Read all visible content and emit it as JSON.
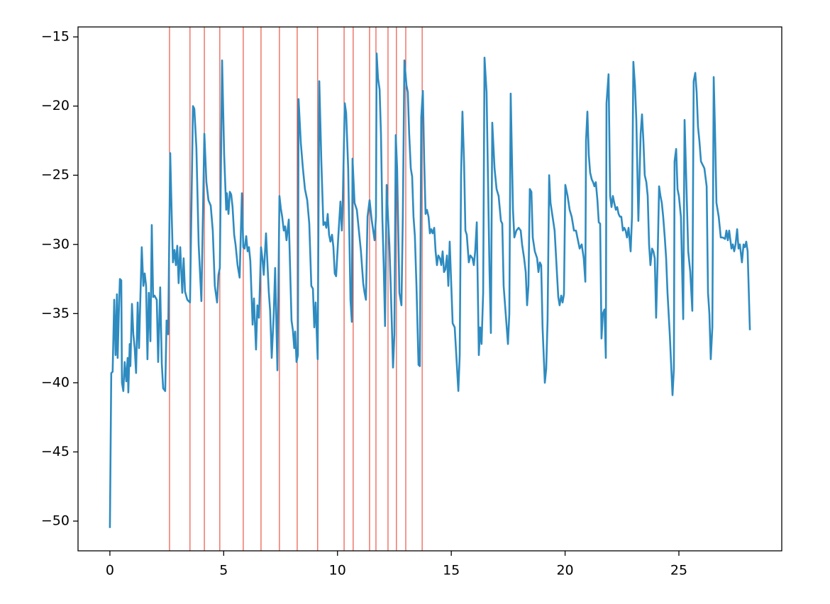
{
  "chart_data": {
    "type": "line",
    "x": [
      0.0,
      0.06,
      0.12,
      0.19,
      0.25,
      0.31,
      0.34,
      0.41,
      0.44,
      0.5,
      0.53,
      0.59,
      0.65,
      0.72,
      0.78,
      0.81,
      0.87,
      0.9,
      0.97,
      1.03,
      1.09,
      1.15,
      1.22,
      1.28,
      1.34,
      1.4,
      1.47,
      1.53,
      1.59,
      1.65,
      1.71,
      1.78,
      1.84,
      1.9,
      1.96,
      2.06,
      2.12,
      2.21,
      2.28,
      2.34,
      2.43,
      2.49,
      2.56,
      2.65,
      2.71,
      2.77,
      2.84,
      2.9,
      2.96,
      3.02,
      3.09,
      3.18,
      3.24,
      3.3,
      3.4,
      3.52,
      3.65,
      3.71,
      3.8,
      3.9,
      4.02,
      4.15,
      4.24,
      4.33,
      4.43,
      4.52,
      4.61,
      4.71,
      4.77,
      4.83,
      4.93,
      5.02,
      5.11,
      5.14,
      5.21,
      5.27,
      5.33,
      5.39,
      5.46,
      5.52,
      5.61,
      5.7,
      5.8,
      5.86,
      5.92,
      5.99,
      6.05,
      6.11,
      6.17,
      6.27,
      6.33,
      6.42,
      6.48,
      6.55,
      6.64,
      6.7,
      6.76,
      6.86,
      6.98,
      7.04,
      7.11,
      7.2,
      7.26,
      7.36,
      7.45,
      7.51,
      7.57,
      7.64,
      7.7,
      7.76,
      7.86,
      7.98,
      8.04,
      8.1,
      8.14,
      8.2,
      8.26,
      8.29,
      8.39,
      8.48,
      8.57,
      8.67,
      8.76,
      8.85,
      8.92,
      8.98,
      9.04,
      9.13,
      9.2,
      9.29,
      9.38,
      9.45,
      9.51,
      9.57,
      9.63,
      9.69,
      9.76,
      9.82,
      9.88,
      9.94,
      10.04,
      10.13,
      10.19,
      10.22,
      10.32,
      10.38,
      10.47,
      10.57,
      10.63,
      10.66,
      10.75,
      10.85,
      10.94,
      11.03,
      11.13,
      11.19,
      11.25,
      11.32,
      11.41,
      11.5,
      11.63,
      11.69,
      11.72,
      11.78,
      11.85,
      11.91,
      11.97,
      12.03,
      12.09,
      12.16,
      12.22,
      12.28,
      12.34,
      12.44,
      12.5,
      12.56,
      12.62,
      12.72,
      12.81,
      12.87,
      12.94,
      13.03,
      13.09,
      13.15,
      13.22,
      13.28,
      13.34,
      13.4,
      13.47,
      13.56,
      13.62,
      13.68,
      13.75,
      13.81,
      13.87,
      13.93,
      14.0,
      14.06,
      14.12,
      14.18,
      14.25,
      14.31,
      14.37,
      14.43,
      14.5,
      14.56,
      14.62,
      14.68,
      14.74,
      14.81,
      14.87,
      14.93,
      15.06,
      15.15,
      15.31,
      15.37,
      15.43,
      15.49,
      15.56,
      15.62,
      15.68,
      15.77,
      15.84,
      15.93,
      15.99,
      16.05,
      16.12,
      16.21,
      16.27,
      16.33,
      16.4,
      16.46,
      16.55,
      16.61,
      16.68,
      16.74,
      16.8,
      16.9,
      16.99,
      17.08,
      17.18,
      17.24,
      17.3,
      17.39,
      17.49,
      17.55,
      17.61,
      17.71,
      17.77,
      17.86,
      17.96,
      18.05,
      18.11,
      18.2,
      18.27,
      18.33,
      18.39,
      18.45,
      18.52,
      18.58,
      18.67,
      18.77,
      18.83,
      18.89,
      18.95,
      19.01,
      19.11,
      19.17,
      19.23,
      19.3,
      19.36,
      19.45,
      19.54,
      19.64,
      19.7,
      19.76,
      19.83,
      19.89,
      19.95,
      20.01,
      20.11,
      20.2,
      20.29,
      20.39,
      20.48,
      20.54,
      20.64,
      20.73,
      20.82,
      20.89,
      20.92,
      20.98,
      21.04,
      21.1,
      21.17,
      21.23,
      21.29,
      21.35,
      21.42,
      21.48,
      21.54,
      21.6,
      21.66,
      21.73,
      21.79,
      21.82,
      21.91,
      21.98,
      22.04,
      22.1,
      22.16,
      22.23,
      22.29,
      22.35,
      22.41,
      22.47,
      22.54,
      22.6,
      22.66,
      22.72,
      22.79,
      22.88,
      22.94,
      23.0,
      23.07,
      23.13,
      23.22,
      23.32,
      23.38,
      23.44,
      23.5,
      23.57,
      23.63,
      23.69,
      23.75,
      23.82,
      23.88,
      23.94,
      24.0,
      24.06,
      24.13,
      24.19,
      24.25,
      24.31,
      24.38,
      24.44,
      24.5,
      24.6,
      24.72,
      24.78,
      24.81,
      24.88,
      24.94,
      25.0,
      25.09,
      25.19,
      25.25,
      25.31,
      25.41,
      25.5,
      25.59,
      25.65,
      25.72,
      25.78,
      25.84,
      25.9,
      25.97,
      26.03,
      26.12,
      26.22,
      26.28,
      26.34,
      26.4,
      26.47,
      26.53,
      26.59,
      26.65,
      26.75,
      26.84,
      26.93,
      27.03,
      27.09,
      27.15,
      27.21,
      27.31,
      27.37,
      27.43,
      27.49,
      27.56,
      27.62,
      27.68,
      27.77,
      27.84,
      27.9,
      27.96,
      28.02,
      28.12
    ],
    "series": [
      {
        "color": "#2e8bc0",
        "values": [
          -50.5,
          -39.3,
          -39.2,
          -34.0,
          -38.0,
          -33.6,
          -38.2,
          -34.0,
          -32.5,
          -32.6,
          -40.0,
          -40.6,
          -38.5,
          -39.9,
          -38.2,
          -40.7,
          -37.2,
          -38.8,
          -34.3,
          -36.5,
          -37.5,
          -39.3,
          -34.2,
          -37.5,
          -33.8,
          -30.2,
          -33.0,
          -32.1,
          -33.0,
          -38.3,
          -33.5,
          -37.0,
          -28.6,
          -33.8,
          -33.7,
          -34.0,
          -38.5,
          -33.1,
          -38.6,
          -40.4,
          -40.6,
          -35.5,
          -36.5,
          -23.4,
          -27.5,
          -31.3,
          -30.4,
          -31.5,
          -30.1,
          -32.8,
          -30.2,
          -33.5,
          -31.0,
          -33.4,
          -34.0,
          -34.2,
          -20.0,
          -20.2,
          -23.0,
          -30.0,
          -34.1,
          -22.0,
          -25.5,
          -26.8,
          -27.2,
          -29.0,
          -33.0,
          -34.2,
          -32.2,
          -31.7,
          -16.7,
          -23.5,
          -27.5,
          -26.3,
          -27.8,
          -26.2,
          -26.4,
          -27.3,
          -29.3,
          -30.0,
          -31.5,
          -32.4,
          -26.3,
          -30.2,
          -30.3,
          -29.4,
          -30.5,
          -30.2,
          -31.2,
          -35.8,
          -33.9,
          -37.6,
          -34.4,
          -35.3,
          -30.2,
          -31.0,
          -32.2,
          -29.2,
          -33.4,
          -34.8,
          -38.2,
          -35.0,
          -31.7,
          -39.1,
          -26.5,
          -27.4,
          -28.0,
          -29.0,
          -28.7,
          -29.7,
          -28.2,
          -35.5,
          -36.2,
          -37.5,
          -36.3,
          -38.5,
          -38.0,
          -19.5,
          -22.7,
          -24.5,
          -26.0,
          -26.8,
          -28.5,
          -33.0,
          -33.2,
          -36.0,
          -34.2,
          -38.3,
          -18.2,
          -24.0,
          -28.6,
          -28.4,
          -28.8,
          -27.8,
          -29.3,
          -29.8,
          -29.3,
          -30.2,
          -32.1,
          -32.3,
          -29.3,
          -26.9,
          -29.0,
          -27.8,
          -19.8,
          -20.5,
          -24.5,
          -34.0,
          -35.6,
          -23.8,
          -27.0,
          -27.5,
          -29.0,
          -30.5,
          -32.8,
          -33.5,
          -34.0,
          -28.0,
          -26.8,
          -28.2,
          -29.7,
          -28.0,
          -16.2,
          -18.0,
          -18.8,
          -22.0,
          -28.0,
          -31.5,
          -35.9,
          -25.7,
          -28.0,
          -30.0,
          -33.0,
          -38.9,
          -36.5,
          -22.1,
          -24.5,
          -33.5,
          -34.4,
          -28.0,
          -16.7,
          -18.5,
          -19.0,
          -22.0,
          -24.5,
          -25.1,
          -28.0,
          -29.4,
          -33.0,
          -38.7,
          -38.8,
          -20.8,
          -18.9,
          -24.0,
          -27.8,
          -27.5,
          -28.0,
          -29.2,
          -28.9,
          -29.2,
          -28.8,
          -30.5,
          -31.5,
          -30.8,
          -31.0,
          -31.5,
          -30.5,
          -32.0,
          -31.8,
          -30.8,
          -33.0,
          -29.8,
          -35.7,
          -36.0,
          -40.6,
          -38.0,
          -25.0,
          -20.4,
          -24.0,
          -29.0,
          -29.3,
          -31.3,
          -30.8,
          -31.0,
          -31.5,
          -30.5,
          -28.4,
          -38.0,
          -36.0,
          -37.2,
          -33.5,
          -16.5,
          -19.0,
          -25.0,
          -32.0,
          -36.4,
          -21.2,
          -24.5,
          -26.0,
          -26.5,
          -28.3,
          -28.5,
          -33.0,
          -35.0,
          -37.2,
          -35.0,
          -19.1,
          -27.5,
          -29.5,
          -29.0,
          -28.8,
          -29.0,
          -30.0,
          -31.0,
          -32.0,
          -34.4,
          -33.0,
          -26.0,
          -26.2,
          -29.5,
          -30.5,
          -31.0,
          -32.0,
          -31.3,
          -31.5,
          -36.0,
          -40.0,
          -39.0,
          -35.5,
          -25.0,
          -27.0,
          -28.0,
          -29.0,
          -32.0,
          -33.8,
          -34.4,
          -33.7,
          -34.2,
          -33.6,
          -25.7,
          -26.5,
          -27.5,
          -28.0,
          -29.0,
          -29.0,
          -29.5,
          -30.3,
          -30.0,
          -31.0,
          -32.7,
          -22.5,
          -20.4,
          -23.5,
          -24.8,
          -25.3,
          -25.5,
          -25.8,
          -25.5,
          -26.8,
          -28.4,
          -28.5,
          -36.8,
          -35.0,
          -34.7,
          -38.2,
          -19.8,
          -17.7,
          -26.5,
          -27.3,
          -26.5,
          -27.0,
          -27.5,
          -27.3,
          -27.8,
          -28.0,
          -28.0,
          -29.0,
          -28.8,
          -29.0,
          -29.5,
          -28.8,
          -30.5,
          -28.0,
          -16.8,
          -18.5,
          -21.0,
          -28.3,
          -22.0,
          -20.6,
          -22.5,
          -25.0,
          -25.5,
          -26.5,
          -30.0,
          -31.5,
          -30.3,
          -30.5,
          -31.0,
          -35.3,
          -31.5,
          -25.8,
          -26.5,
          -27.0,
          -28.0,
          -29.5,
          -31.0,
          -33.5,
          -36.5,
          -40.9,
          -39.0,
          -24.0,
          -23.1,
          -26.0,
          -26.5,
          -28.0,
          -35.4,
          -21.0,
          -24.5,
          -30.5,
          -32.0,
          -34.8,
          -18.2,
          -17.6,
          -19.0,
          -21.5,
          -22.5,
          -24.0,
          -24.2,
          -24.5,
          -25.8,
          -33.5,
          -35.0,
          -38.3,
          -36.0,
          -17.9,
          -22.0,
          -27.0,
          -28.0,
          -29.5,
          -29.5,
          -29.6,
          -29.0,
          -29.7,
          -29.0,
          -30.3,
          -30.0,
          -30.5,
          -30.0,
          -28.9,
          -30.3,
          -30.0,
          -31.3,
          -30.0,
          -30.2,
          -29.8,
          -30.5,
          -36.2
        ]
      }
    ],
    "vlines": {
      "color": "#e8321e",
      "x": [
        2.62,
        3.52,
        4.15,
        4.83,
        5.86,
        6.64,
        7.45,
        8.23,
        9.13,
        10.29,
        10.69,
        11.41,
        11.69,
        12.22,
        12.59,
        13.0,
        13.72
      ]
    },
    "xlim": [
      -1.4,
      29.52
    ],
    "ylim": [
      -52.15,
      -14.28
    ],
    "xticks": [
      0,
      5,
      10,
      15,
      20,
      25
    ],
    "yticks": [
      {
        "value": -50,
        "label": "−50"
      },
      {
        "value": -45,
        "label": "−45"
      },
      {
        "value": -40,
        "label": "−40"
      },
      {
        "value": -35,
        "label": "−35"
      },
      {
        "value": -30,
        "label": "−30"
      },
      {
        "value": -25,
        "label": "−25"
      },
      {
        "value": -20,
        "label": "−20"
      },
      {
        "value": -15,
        "label": "−15"
      }
    ],
    "grid": false
  }
}
